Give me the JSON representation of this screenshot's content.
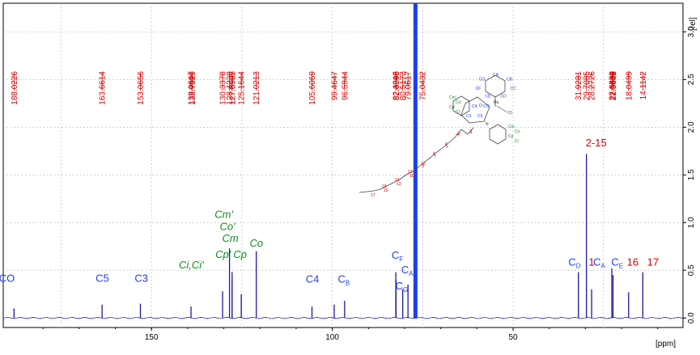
{
  "chart_data": {
    "type": "line",
    "xlabel": "[ppm]",
    "ylabel": "[rel]",
    "xlim": [
      191,
      3
    ],
    "ylim": [
      -0.1,
      3.3
    ],
    "x_ticks": [
      {
        "value": 150,
        "label": "150"
      },
      {
        "value": 100,
        "label": "100"
      },
      {
        "value": 50,
        "label": "50"
      }
    ],
    "y_ticks": [
      {
        "value": 3.0,
        "label": "3.0"
      },
      {
        "value": 2.5,
        "label": "2.5"
      },
      {
        "value": 2.0,
        "label": "2.0"
      },
      {
        "value": 1.5,
        "label": "1.5"
      },
      {
        "value": 1.0,
        "label": "1.0"
      },
      {
        "value": 0.5,
        "label": "0.5"
      },
      {
        "value": 0.0,
        "label": "0.0"
      }
    ],
    "grid": true,
    "peaks": [
      {
        "ppm": 188.0226,
        "intensity": 0.1
      },
      {
        "ppm": 163.6614,
        "intensity": 0.14
      },
      {
        "ppm": 153.0656,
        "intensity": 0.15
      },
      {
        "ppm": 139.0667,
        "intensity": 0.12
      },
      {
        "ppm": 130.3378,
        "intensity": 0.28
      },
      {
        "ppm": 128.4238,
        "intensity": 0.73
      },
      {
        "ppm": 127.6987,
        "intensity": 0.48
      },
      {
        "ppm": 127.6995,
        "intensity": 0.38
      },
      {
        "ppm": 125.1644,
        "intensity": 0.25
      },
      {
        "ppm": 121.0213,
        "intensity": 0.7
      },
      {
        "ppm": 105.6069,
        "intensity": 0.12
      },
      {
        "ppm": 99.4647,
        "intensity": 0.14
      },
      {
        "ppm": 96.5944,
        "intensity": 0.18
      },
      {
        "ppm": 82.4245,
        "intensity": 0.48
      },
      {
        "ppm": 82.3598,
        "intensity": 0.4
      },
      {
        "ppm": 80.5173,
        "intensity": 0.3
      },
      {
        "ppm": 79.0617,
        "intensity": 0.35
      },
      {
        "ppm": 77.0,
        "intensity": 3.3
      },
      {
        "ppm": 31.9281,
        "intensity": 0.48
      },
      {
        "ppm": 29.7085,
        "intensity": 1.72
      },
      {
        "ppm": 28.2726,
        "intensity": 0.3
      },
      {
        "ppm": 22.6899,
        "intensity": 0.52
      },
      {
        "ppm": 22.3542,
        "intensity": 0.45
      },
      {
        "ppm": 18.0499,
        "intensity": 0.27
      },
      {
        "ppm": 14.1142,
        "intensity": 0.48
      }
    ],
    "shift_labels": [
      "188.0226",
      "163.6614",
      "153.0656",
      "139.0667",
      "138.7329",
      "130.3378",
      "128.4238",
      "127.6987",
      "127.6995",
      "125.1644",
      "121.0213",
      "105.6069",
      "99.4647",
      "96.5944",
      "82.4245",
      "82.3598",
      "80.5173",
      "79.0617",
      "75.0432",
      "31.9281",
      "29.7085",
      "28.2726",
      "22.6899",
      "22.3542",
      "22.3439",
      "18.0499",
      "14.1142"
    ],
    "assignments": [
      {
        "ppm": 190.0,
        "intensity": 0.38,
        "label": "CO",
        "color": "#1f3ef0"
      },
      {
        "ppm": 163.6,
        "intensity": 0.38,
        "label": "C5",
        "color": "#1f3ef0"
      },
      {
        "ppm": 152.8,
        "intensity": 0.38,
        "label": "C3",
        "color": "#1f3ef0"
      },
      {
        "ppm": 139.0,
        "intensity": 0.52,
        "label": "Ci,Ci'",
        "color": "#0a8f1c"
      },
      {
        "ppm": 130.2,
        "intensity": 0.63,
        "label": "Cp'",
        "color": "#0a8f1c"
      },
      {
        "ppm": 125.5,
        "intensity": 0.63,
        "label": "Cp",
        "color": "#0a8f1c"
      },
      {
        "ppm": 130.0,
        "intensity": 1.05,
        "label": "Cm'",
        "color": "#0a8f1c"
      },
      {
        "ppm": 129.0,
        "intensity": 0.92,
        "label": "Co'",
        "color": "#0a8f1c"
      },
      {
        "ppm": 128.2,
        "intensity": 0.8,
        "label": "Cm",
        "color": "#0a8f1c"
      },
      {
        "ppm": 121.0,
        "intensity": 0.75,
        "label": "Co",
        "color": "#0a8f1c"
      },
      {
        "ppm": 105.5,
        "intensity": 0.37,
        "label": "C4",
        "color": "#1f3ef0"
      },
      {
        "ppm": 96.8,
        "intensity": 0.37,
        "label": "CB",
        "color": "#1f3ef0"
      },
      {
        "ppm": 82.0,
        "intensity": 0.62,
        "label": "CF",
        "color": "#1f3ef0"
      },
      {
        "ppm": 79.3,
        "intensity": 0.47,
        "label": "CA",
        "color": "#1f3ef0"
      },
      {
        "ppm": 80.8,
        "intensity": 0.3,
        "label": "CG",
        "color": "#1f3ef0"
      },
      {
        "ppm": 33.0,
        "intensity": 0.55,
        "label": "CD",
        "color": "#1f3ef0"
      },
      {
        "ppm": 28.3,
        "intensity": 0.55,
        "label": "1",
        "color": "#d40000"
      },
      {
        "ppm": 27.0,
        "intensity": 1.8,
        "label": "2-15",
        "color": "#d40000"
      },
      {
        "ppm": 26.2,
        "intensity": 0.55,
        "label": "CA",
        "color": "#1f3ef0"
      },
      {
        "ppm": 21.2,
        "intensity": 0.55,
        "label": "CE",
        "color": "#1f3ef0"
      },
      {
        "ppm": 16.9,
        "intensity": 0.55,
        "label": "16",
        "color": "#d40000"
      },
      {
        "ppm": 11.3,
        "intensity": 0.55,
        "label": "17",
        "color": "#d40000"
      }
    ],
    "structure_labels": {
      "ring_blue": [
        "CA",
        "CB",
        "CC",
        "CD",
        "CE",
        "CF",
        "CG"
      ],
      "phenyl_green": [
        "Cm'",
        "Co'",
        "Cp'",
        "Ci'",
        "Cm",
        "Co",
        "Cp",
        "Ci"
      ],
      "core_blue": [
        "C3",
        "C4",
        "C5",
        "CO"
      ],
      "metal": [
        "Ru",
        "Cl",
        "O",
        "N"
      ],
      "chain_numbers": [
        "1",
        "2",
        "3",
        "4",
        "5",
        "6",
        "7",
        "8",
        "9",
        "10",
        "11",
        "12",
        "13",
        "14",
        "15",
        "16",
        "17"
      ]
    },
    "colors": {
      "spectrum": "#1a1aa6",
      "solvent": "#1f3ef0",
      "shift_labels": "#d40000",
      "blue_assign": "#1f3ef0",
      "green_assign": "#0a8f1c",
      "red_assign": "#d40000",
      "grid": "#9a9a9a"
    }
  }
}
